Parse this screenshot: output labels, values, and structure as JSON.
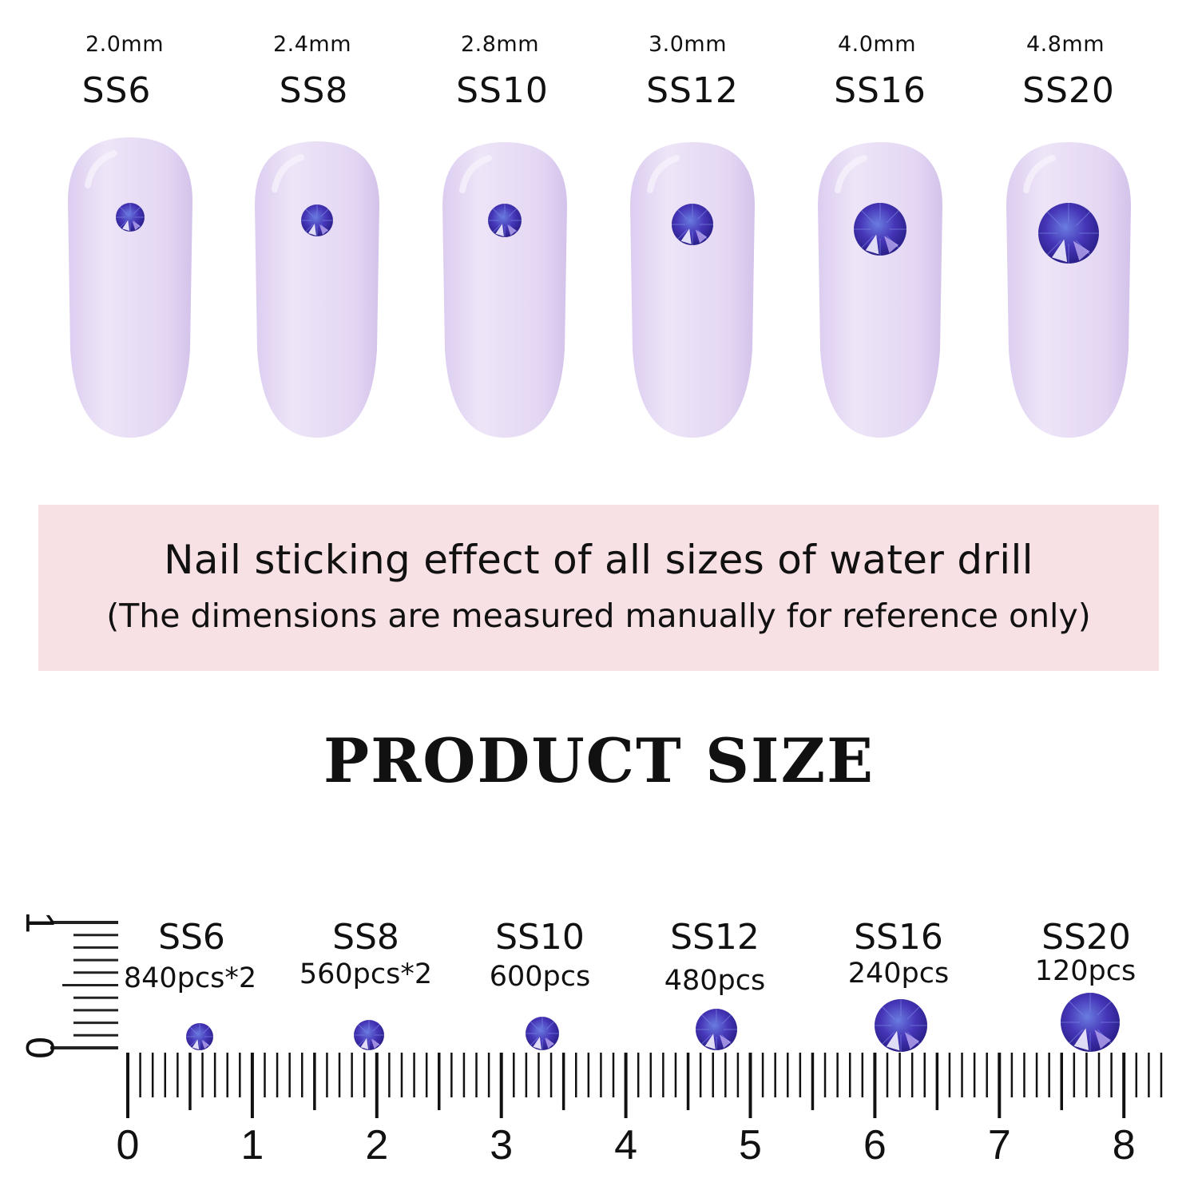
{
  "colors": {
    "nail": "#e7dcf4",
    "banner": "#f8e1e4",
    "gem": "#4a3fc0",
    "text": "#111111"
  },
  "nails": [
    {
      "mm": "2.0mm",
      "ss": "SS6"
    },
    {
      "mm": "2.4mm",
      "ss": "SS8"
    },
    {
      "mm": "2.8mm",
      "ss": "SS10"
    },
    {
      "mm": "3.0mm",
      "ss": "SS12"
    },
    {
      "mm": "4.0mm",
      "ss": "SS16"
    },
    {
      "mm": "4.8mm",
      "ss": "SS20"
    }
  ],
  "banner": {
    "title": "Nail sticking effect of all sizes of water drill",
    "subtitle": "(The dimensions are measured manually for reference only)"
  },
  "heading": "PRODUCT SIZE",
  "ruler_items": [
    {
      "ss": "SS6",
      "qty": "840pcs*2"
    },
    {
      "ss": "SS8",
      "qty": "560pcs*2"
    },
    {
      "ss": "SS10",
      "qty": "600pcs"
    },
    {
      "ss": "SS12",
      "qty": "480pcs"
    },
    {
      "ss": "SS16",
      "qty": "240pcs"
    },
    {
      "ss": "SS20",
      "qty": "120pcs"
    }
  ],
  "ruler": {
    "numbers": [
      "0",
      "1",
      "2",
      "3",
      "4",
      "5",
      "6",
      "7",
      "8"
    ],
    "vertical_numbers": [
      "0",
      "1"
    ]
  }
}
